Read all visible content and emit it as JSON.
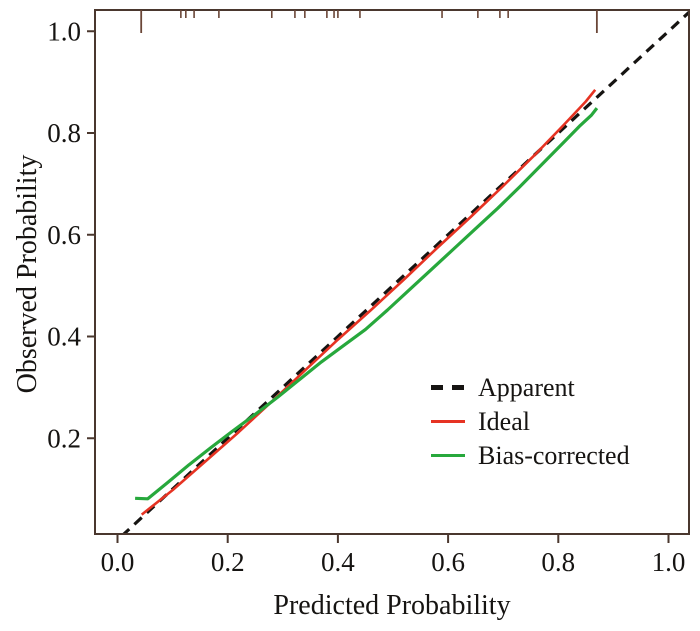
{
  "figure": {
    "background": "#ffffff",
    "frame_color": "#4a372e",
    "rug_color": "#6a4637",
    "text_color": "#161412"
  },
  "chart_data": {
    "type": "line",
    "title": "",
    "xlabel": "Predicted Probability",
    "ylabel": "Observed Probability",
    "xlim": [
      -0.04,
      1.04
    ],
    "ylim": [
      0.01,
      1.04
    ],
    "grid": false,
    "legend_position": "inside-lower-right",
    "x_ticks": [
      0.0,
      0.2,
      0.4,
      0.6,
      0.8,
      1.0
    ],
    "x_tick_labels": [
      "0.0",
      "0.2",
      "0.4",
      "0.6",
      "0.8",
      "1.0"
    ],
    "y_ticks": [
      0.2,
      0.4,
      0.6,
      0.8,
      1.0
    ],
    "y_tick_labels": [
      "0.2",
      "0.4",
      "0.6",
      "0.8",
      "1.0"
    ],
    "series": [
      {
        "name": "Apparent",
        "color": "#161412",
        "style": "dashed",
        "width": 3.2,
        "points": [
          [
            -0.06,
            -0.06
          ],
          [
            1.06,
            1.06
          ]
        ]
      },
      {
        "name": "Ideal",
        "color": "#e63323",
        "style": "solid",
        "width": 2.6,
        "points": [
          [
            0.044,
            0.05
          ],
          [
            0.1,
            0.098
          ],
          [
            0.16,
            0.155
          ],
          [
            0.22,
            0.212
          ],
          [
            0.28,
            0.272
          ],
          [
            0.34,
            0.333
          ],
          [
            0.4,
            0.394
          ],
          [
            0.46,
            0.452
          ],
          [
            0.52,
            0.512
          ],
          [
            0.58,
            0.574
          ],
          [
            0.64,
            0.634
          ],
          [
            0.7,
            0.696
          ],
          [
            0.76,
            0.76
          ],
          [
            0.81,
            0.816
          ],
          [
            0.85,
            0.862
          ],
          [
            0.867,
            0.885
          ]
        ]
      },
      {
        "name": "Bias-corrected",
        "color": "#27a83c",
        "style": "solid",
        "width": 3.2,
        "points": [
          [
            0.032,
            0.082
          ],
          [
            0.055,
            0.081
          ],
          [
            0.09,
            0.112
          ],
          [
            0.13,
            0.148
          ],
          [
            0.17,
            0.182
          ],
          [
            0.21,
            0.215
          ],
          [
            0.25,
            0.247
          ],
          [
            0.29,
            0.28
          ],
          [
            0.33,
            0.315
          ],
          [
            0.37,
            0.35
          ],
          [
            0.41,
            0.382
          ],
          [
            0.45,
            0.414
          ],
          [
            0.49,
            0.452
          ],
          [
            0.53,
            0.492
          ],
          [
            0.57,
            0.532
          ],
          [
            0.61,
            0.572
          ],
          [
            0.65,
            0.612
          ],
          [
            0.69,
            0.652
          ],
          [
            0.73,
            0.694
          ],
          [
            0.77,
            0.738
          ],
          [
            0.81,
            0.782
          ],
          [
            0.84,
            0.815
          ],
          [
            0.86,
            0.835
          ],
          [
            0.87,
            0.849
          ]
        ]
      }
    ],
    "rug": {
      "short": [
        0.115,
        0.124,
        0.139,
        0.184,
        0.28,
        0.322,
        0.34,
        0.38,
        0.393,
        0.4,
        0.44,
        0.589,
        0.654,
        0.694,
        0.709
      ],
      "long": [
        0.043,
        0.87
      ]
    },
    "legend": [
      {
        "label": "Apparent",
        "color": "#161412",
        "style": "dashed"
      },
      {
        "label": "Ideal",
        "color": "#e63323",
        "style": "solid"
      },
      {
        "label": "Bias-corrected",
        "color": "#27a83c",
        "style": "solid"
      }
    ]
  }
}
